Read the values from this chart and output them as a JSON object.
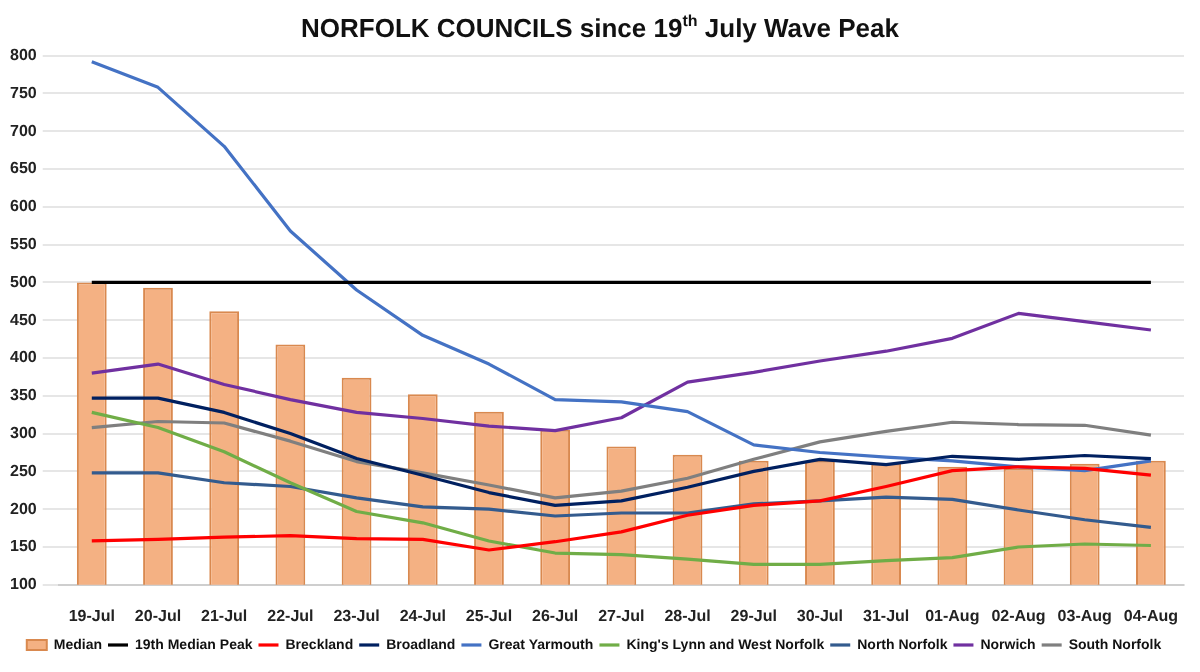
{
  "chart_data": {
    "type": "line",
    "title": "NORFOLK COUNCILS since 19$^{th}$ July Wave Peak",
    "categories": [
      "19-Jul",
      "20-Jul",
      "21-Jul",
      "22-Jul",
      "23-Jul",
      "24-Jul",
      "25-Jul",
      "26-Jul",
      "27-Jul",
      "28-Jul",
      "29-Jul",
      "30-Jul",
      "31-Jul",
      "01-Aug",
      "02-Aug",
      "03-Aug",
      "04-Aug"
    ],
    "series": [
      {
        "name": "Median",
        "type": "bar",
        "color": "#f4b183",
        "values": [
          500,
          493,
          462,
          418,
          374,
          352,
          329,
          305,
          283,
          272,
          264,
          264,
          260,
          256,
          254,
          260,
          264
        ]
      },
      {
        "name": "19th Median Peak",
        "color": "#000000",
        "values": [
          500,
          500,
          500,
          500,
          500,
          500,
          500,
          500,
          500,
          500,
          500,
          500,
          500,
          500,
          500,
          500,
          500
        ]
      },
      {
        "name": "Breckland",
        "color": "#ff0000",
        "values": [
          158,
          160,
          163,
          165,
          161,
          160,
          146,
          157,
          170,
          192,
          205,
          211,
          230,
          251,
          256,
          254,
          245
        ]
      },
      {
        "name": "Broadland",
        "color": "#002060",
        "values": [
          347,
          347,
          328,
          300,
          267,
          245,
          222,
          205,
          211,
          229,
          250,
          266,
          259,
          270,
          266,
          271,
          267
        ]
      },
      {
        "name": "Great Yarmouth",
        "color": "#4472c4",
        "values": [
          792,
          758,
          680,
          568,
          490,
          430,
          392,
          345,
          342,
          329,
          285,
          275,
          269,
          264,
          256,
          251,
          264
        ]
      },
      {
        "name": "King's Lynn and West Norfolk",
        "color": "#70ad47",
        "values": [
          328,
          308,
          276,
          235,
          197,
          182,
          158,
          142,
          140,
          134,
          127,
          127,
          132,
          136,
          150,
          154,
          152
        ]
      },
      {
        "name": "North Norfolk",
        "color": "#335b8e",
        "values": [
          248,
          248,
          235,
          230,
          215,
          203,
          200,
          191,
          195,
          195,
          207,
          211,
          216,
          213,
          199,
          186,
          176
        ]
      },
      {
        "name": "Norwich",
        "color": "#7030a0",
        "values": [
          380,
          392,
          365,
          345,
          328,
          320,
          310,
          304,
          321,
          368,
          381,
          396,
          409,
          426,
          459,
          448,
          437
        ]
      },
      {
        "name": "South Norfolk",
        "color": "#7f7f7f",
        "values": [
          308,
          316,
          314,
          290,
          263,
          248,
          232,
          215,
          224,
          241,
          266,
          289,
          303,
          315,
          312,
          311,
          298
        ]
      }
    ],
    "ylim": [
      100,
      800
    ],
    "yticks": [
      100,
      150,
      200,
      250,
      300,
      350,
      400,
      450,
      500,
      550,
      600,
      650,
      700,
      750,
      800
    ],
    "grid": "y",
    "legend": "bottom",
    "marker": "none"
  }
}
